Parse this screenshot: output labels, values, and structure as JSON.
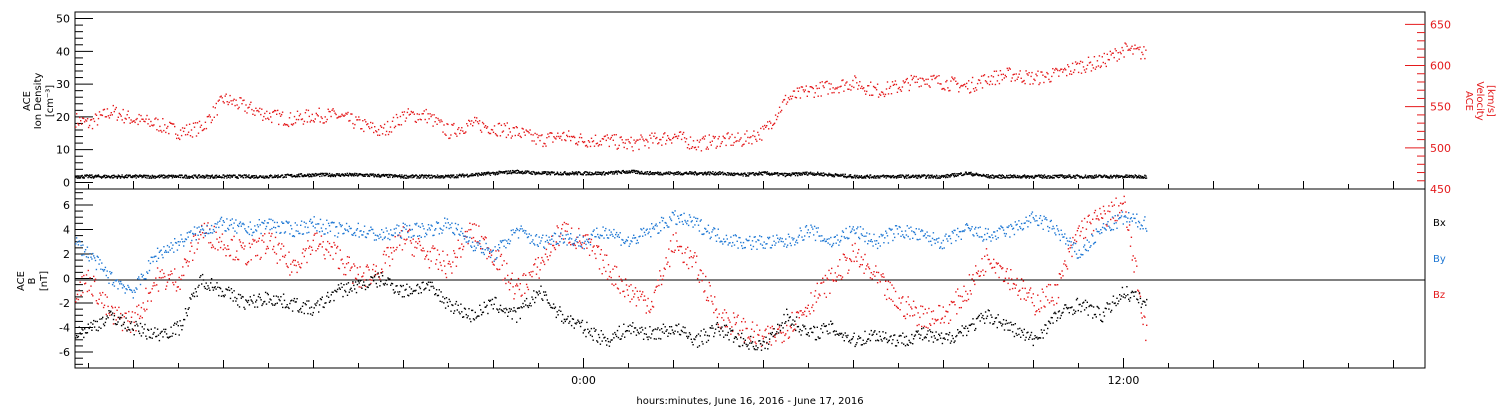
{
  "colors": {
    "black": "#000000",
    "red": "#e41a1c",
    "blue": "#1f78d4"
  },
  "xlabel": "hours:minutes, June 16, 2016 - June 17, 2016",
  "chart_data": [
    {
      "type": "scatter",
      "panel": "top",
      "left_ylabel": [
        "ACE",
        "Ion Density",
        "[cm⁻³]"
      ],
      "right_ylabel": [
        "ACE",
        "Velocity",
        "[km/s]"
      ],
      "x_axis": {
        "unit": "hours from 0:00 June 16, 2016",
        "xlim": [
          -11.3,
          18.7
        ],
        "major_ticks": [
          0,
          12
        ],
        "major_tick_labels": [
          "0:00",
          "12:00"
        ]
      },
      "ylim_left": [
        -2,
        52
      ],
      "ylim_right": [
        450,
        665
      ],
      "left_ticks": [
        0,
        10,
        20,
        30,
        40,
        50
      ],
      "right_ticks": [
        450,
        500,
        550,
        600,
        650
      ],
      "series": [
        {
          "color": "black",
          "axis": "left",
          "x": [
            -11.3,
            -10,
            -9,
            -8,
            -7,
            -6,
            -5,
            -4,
            -3,
            -2.5,
            -2,
            -1.5,
            -1,
            -0.5,
            0,
            0.5,
            1,
            1.5,
            2,
            2.5,
            3,
            3.5,
            4,
            4.5,
            5,
            5.5,
            6,
            6.5,
            7,
            7.5,
            8,
            8.5,
            9,
            9.5,
            10,
            10.5,
            11,
            11.5,
            12,
            12.5
          ],
          "y": [
            2,
            2,
            2,
            2,
            2,
            2.5,
            2.5,
            2,
            2,
            2.5,
            3,
            3.5,
            3,
            3,
            3,
            3,
            3.5,
            3,
            3,
            3,
            3,
            2.5,
            3,
            2.5,
            3,
            2.5,
            2,
            2,
            2,
            2,
            2,
            3,
            2,
            2,
            2,
            2,
            2,
            2,
            2,
            2
          ]
        },
        {
          "color": "red",
          "axis": "right",
          "x": [
            -11.3,
            -11,
            -10.5,
            -10,
            -9.5,
            -9,
            -8.5,
            -8,
            -7.5,
            -7,
            -6.5,
            -6,
            -5.5,
            -5,
            -4.5,
            -4,
            -3.5,
            -3,
            -2.5,
            -2,
            -1.5,
            -1,
            -0.5,
            0,
            0.5,
            1,
            1.5,
            2,
            2.5,
            3,
            3.5,
            4,
            4.5,
            5,
            5.5,
            6,
            6.5,
            7,
            7.5,
            8,
            8.5,
            9,
            9.5,
            10,
            10.5,
            11,
            11.5,
            12,
            12.5
          ],
          "y": [
            535,
            530,
            545,
            535,
            530,
            520,
            525,
            560,
            550,
            540,
            535,
            540,
            540,
            530,
            520,
            540,
            540,
            520,
            530,
            525,
            520,
            510,
            515,
            510,
            510,
            505,
            510,
            515,
            505,
            510,
            510,
            520,
            560,
            570,
            575,
            580,
            570,
            575,
            585,
            580,
            575,
            585,
            590,
            585,
            590,
            600,
            605,
            620,
            615
          ]
        }
      ]
    },
    {
      "type": "scatter",
      "panel": "bottom",
      "left_ylabel": [
        "ACE",
        "B",
        "[nT]"
      ],
      "x_axis": {
        "unit": "hours from 0:00 June 16, 2016",
        "xlim": [
          -11.3,
          18.7
        ],
        "major_ticks": [
          0,
          12
        ],
        "major_tick_labels": [
          "0:00",
          "12:00"
        ]
      },
      "ylim": [
        -7.3,
        7.3
      ],
      "ticks": [
        -6,
        -4,
        -2,
        0,
        2,
        4,
        6
      ],
      "legend_position": "right",
      "series": [
        {
          "name": "Bx",
          "color": "black",
          "x": [
            -11.3,
            -11,
            -10.5,
            -10,
            -9.5,
            -9,
            -8.5,
            -8,
            -7.5,
            -7,
            -6.5,
            -6,
            -5.5,
            -5,
            -4.5,
            -4,
            -3.5,
            -3,
            -2.5,
            -2,
            -1.5,
            -1,
            -0.5,
            0,
            0.5,
            1,
            1.5,
            2,
            2.5,
            3,
            3.5,
            4,
            4.5,
            5,
            5.5,
            6,
            6.5,
            7,
            7.5,
            8,
            8.5,
            9,
            9.5,
            10,
            10.5,
            11,
            11.5,
            12,
            12.5
          ],
          "y": [
            -4.5,
            -4,
            -3,
            -4,
            -4.5,
            -4,
            0,
            -1,
            -2,
            -1.5,
            -2,
            -2.5,
            -1,
            -0.5,
            0,
            -1,
            -0.5,
            -2,
            -3,
            -2,
            -3,
            -1,
            -3,
            -4,
            -5,
            -4,
            -4.5,
            -4,
            -5,
            -4,
            -5,
            -5.5,
            -3,
            -4.5,
            -4,
            -5,
            -4.5,
            -5,
            -4.5,
            -5,
            -4,
            -3,
            -4,
            -5,
            -3,
            -2,
            -3,
            -1,
            -2
          ]
        },
        {
          "name": "By",
          "color": "blue",
          "x": [
            -11.3,
            -11,
            -10.5,
            -10,
            -9.5,
            -9,
            -8.5,
            -8,
            -7.5,
            -7,
            -6.5,
            -6,
            -5.5,
            -5,
            -4.5,
            -4,
            -3.5,
            -3,
            -2.5,
            -2,
            -1.5,
            -1,
            -0.5,
            0,
            0.5,
            1,
            1.5,
            2,
            2.5,
            3,
            3.5,
            4,
            4.5,
            5,
            5.5,
            6,
            6.5,
            7,
            7.5,
            8,
            8.5,
            9,
            9.5,
            10,
            10.5,
            11,
            11.5,
            12,
            12.5
          ],
          "y": [
            3,
            2,
            0,
            -1,
            2,
            3,
            4,
            4.5,
            4,
            4.5,
            4,
            4.5,
            4,
            4,
            3.5,
            4,
            4,
            4.5,
            3,
            2,
            4,
            3,
            3.5,
            3,
            4,
            3,
            4,
            5,
            4.5,
            3.5,
            3,
            3,
            3,
            4,
            3,
            4,
            3,
            4,
            3.5,
            3,
            4,
            3.5,
            4,
            5,
            4,
            2,
            4,
            5,
            4.5
          ]
        },
        {
          "name": "Bz",
          "color": "red",
          "x": [
            -11.3,
            -11,
            -10.5,
            -10,
            -9.5,
            -9,
            -8.5,
            -8,
            -7.5,
            -7,
            -6.5,
            -6,
            -5.5,
            -5,
            -4.5,
            -4,
            -3.5,
            -3,
            -2.5,
            -2,
            -1.5,
            -1,
            -0.5,
            0,
            0.5,
            1,
            1.5,
            2,
            2.5,
            3,
            3.5,
            4,
            4.5,
            5,
            5.5,
            6,
            6.5,
            7,
            7.5,
            8,
            8.5,
            9,
            9.5,
            10,
            10.5,
            11,
            11.5,
            12,
            12.5
          ],
          "y": [
            -1,
            0,
            -3,
            -3.5,
            0,
            0,
            4,
            3,
            2,
            3,
            1,
            3,
            2,
            0,
            1,
            3.5,
            2,
            1,
            4,
            2,
            -1,
            1,
            4,
            3,
            1,
            -1,
            -2,
            3,
            1,
            -3,
            -4,
            -5,
            -4,
            -2,
            0,
            2,
            0,
            -2,
            -3,
            -3,
            -1,
            2,
            0,
            -2,
            -1,
            4,
            5,
            6,
            -4.5
          ]
        }
      ]
    }
  ]
}
